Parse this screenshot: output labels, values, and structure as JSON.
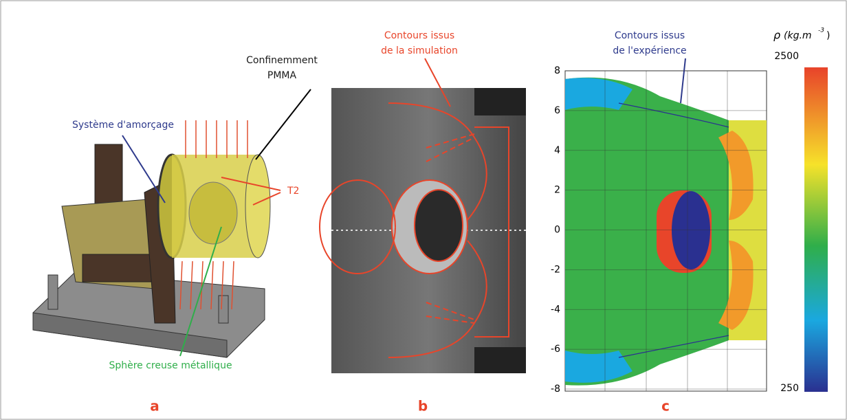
{
  "panels": [
    {
      "letter": "a",
      "labels": {
        "initiator": "Système d'amorçage",
        "confinement": [
          "Confinemment",
          "PMMA"
        ],
        "probe": "T2",
        "sphere": "Sphère creuse métallique"
      }
    },
    {
      "letter": "b",
      "labels": {
        "contours": [
          "Contours issus",
          "de la simulation"
        ]
      }
    },
    {
      "letter": "c",
      "labels": {
        "contours": [
          "Contours issus",
          "de l'expérience"
        ]
      },
      "yticks": [
        8,
        6,
        4,
        2,
        0,
        -2,
        -4,
        -6,
        -8
      ],
      "ylim": [
        -8,
        8
      ],
      "colorbar": {
        "symbol": "ρ",
        "unit_open": "(kg.m",
        "exponent": "-3",
        "unit_close": ")",
        "max": 2500,
        "min": 250
      }
    }
  ]
}
